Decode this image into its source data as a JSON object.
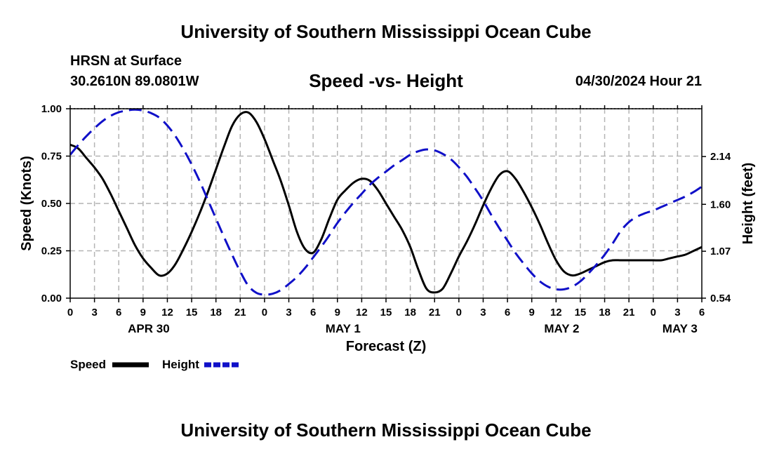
{
  "header": {
    "title": "University of Southern Mississippi Ocean Cube",
    "station": "HRSN at Surface",
    "coords": "30.2610N  89.0801W",
    "datetime": "04/30/2024 Hour 21"
  },
  "footer": {
    "title": "University of Southern Mississippi Ocean Cube"
  },
  "chart_data": {
    "type": "line",
    "title": "Speed -vs- Height",
    "xlabel": "Forecast (Z)",
    "ylabel_left": "Speed (Knots)",
    "ylabel_right": "Height (feet)",
    "x_unit": "hours since APR 30 00Z",
    "xlim": [
      0,
      78
    ],
    "ylim_left": [
      0,
      1
    ],
    "ylim_right": [
      0.54,
      2.68
    ],
    "left_ticks": [
      "0.00",
      "0.25",
      "0.50",
      "0.75",
      "1.00"
    ],
    "right_ticks": [
      {
        "value": 0.54,
        "label": "0.54"
      },
      {
        "value": 1.07,
        "label": "1.07"
      },
      {
        "value": 1.6,
        "label": "1.60"
      },
      {
        "value": 2.14,
        "label": "2.14"
      }
    ],
    "x_tick_step": 3,
    "x_tick_labels": [
      "0",
      "3",
      "6",
      "9",
      "12",
      "15",
      "18",
      "21",
      "0",
      "3",
      "6",
      "9",
      "12",
      "15",
      "18",
      "21",
      "0",
      "3",
      "6",
      "9",
      "12",
      "15",
      "18",
      "21",
      "0",
      "3",
      "6"
    ],
    "day_labels": [
      {
        "label": "APR 30",
        "x": 9.7
      },
      {
        "label": "MAY 1",
        "x": 33.7
      },
      {
        "label": "MAY 2",
        "x": 60.7
      },
      {
        "label": "MAY 3",
        "x": 75.3
      }
    ],
    "grid": true,
    "legend": [
      {
        "label": "Speed",
        "color": "#000000",
        "style": "solid"
      },
      {
        "label": "Height",
        "color": "#1010c8",
        "style": "dashed"
      }
    ],
    "series": [
      {
        "name": "Speed",
        "axis": "left",
        "color": "#000000",
        "x": [
          0,
          1,
          2,
          3,
          4,
          5,
          6,
          7,
          8,
          9,
          10,
          11,
          12,
          13,
          14,
          15,
          16,
          17,
          18,
          19,
          20,
          21,
          22,
          23,
          24,
          25,
          26,
          27,
          28,
          29,
          30,
          31,
          32,
          33,
          34,
          35,
          36,
          37,
          38,
          39,
          40,
          41,
          42,
          43,
          44,
          45,
          46,
          47,
          48,
          49,
          50,
          51,
          52,
          53,
          54,
          55,
          56,
          57,
          58,
          59,
          60,
          61,
          62,
          63,
          64,
          65,
          66,
          67,
          68,
          69,
          70,
          71,
          72,
          73,
          74,
          75,
          76,
          77,
          78
        ],
        "values": [
          0.81,
          0.79,
          0.74,
          0.69,
          0.63,
          0.55,
          0.46,
          0.37,
          0.28,
          0.21,
          0.16,
          0.12,
          0.13,
          0.18,
          0.26,
          0.35,
          0.45,
          0.56,
          0.68,
          0.8,
          0.91,
          0.97,
          0.98,
          0.93,
          0.84,
          0.73,
          0.62,
          0.49,
          0.35,
          0.26,
          0.24,
          0.31,
          0.42,
          0.52,
          0.57,
          0.61,
          0.63,
          0.62,
          0.57,
          0.5,
          0.43,
          0.36,
          0.27,
          0.15,
          0.05,
          0.03,
          0.05,
          0.13,
          0.22,
          0.3,
          0.39,
          0.49,
          0.58,
          0.65,
          0.67,
          0.63,
          0.56,
          0.48,
          0.39,
          0.29,
          0.2,
          0.14,
          0.12,
          0.13,
          0.15,
          0.17,
          0.19,
          0.2,
          0.2,
          0.2,
          0.2,
          0.2,
          0.2,
          0.2,
          0.21,
          0.22,
          0.23,
          0.25,
          0.27
        ]
      },
      {
        "name": "Height",
        "axis": "right",
        "color": "#1010c8",
        "x": [
          0,
          1,
          2,
          3,
          4,
          5,
          6,
          7,
          8,
          9,
          10,
          11,
          12,
          13,
          14,
          15,
          16,
          17,
          18,
          19,
          20,
          21,
          22,
          23,
          24,
          25,
          26,
          27,
          28,
          29,
          30,
          31,
          32,
          33,
          34,
          35,
          36,
          37,
          38,
          39,
          40,
          41,
          42,
          43,
          44,
          45,
          46,
          47,
          48,
          49,
          50,
          51,
          52,
          53,
          54,
          55,
          56,
          57,
          58,
          59,
          60,
          61,
          62,
          63,
          64,
          65,
          66,
          67,
          68,
          69,
          70,
          71,
          72,
          73,
          74,
          75,
          76,
          77,
          78
        ],
        "values": [
          2.16,
          2.27,
          2.37,
          2.46,
          2.54,
          2.6,
          2.64,
          2.66,
          2.67,
          2.66,
          2.63,
          2.58,
          2.49,
          2.37,
          2.22,
          2.05,
          1.86,
          1.65,
          1.44,
          1.23,
          1.03,
          0.84,
          0.68,
          0.6,
          0.58,
          0.59,
          0.63,
          0.7,
          0.78,
          0.88,
          1.0,
          1.12,
          1.25,
          1.39,
          1.51,
          1.62,
          1.72,
          1.82,
          1.9,
          1.97,
          2.04,
          2.1,
          2.16,
          2.2,
          2.22,
          2.21,
          2.17,
          2.11,
          2.02,
          1.91,
          1.78,
          1.64,
          1.48,
          1.33,
          1.19,
          1.05,
          0.93,
          0.82,
          0.73,
          0.67,
          0.64,
          0.64,
          0.67,
          0.73,
          0.82,
          0.92,
          1.03,
          1.16,
          1.3,
          1.4,
          1.46,
          1.5,
          1.53,
          1.57,
          1.61,
          1.65,
          1.69,
          1.74,
          1.8
        ]
      }
    ]
  }
}
